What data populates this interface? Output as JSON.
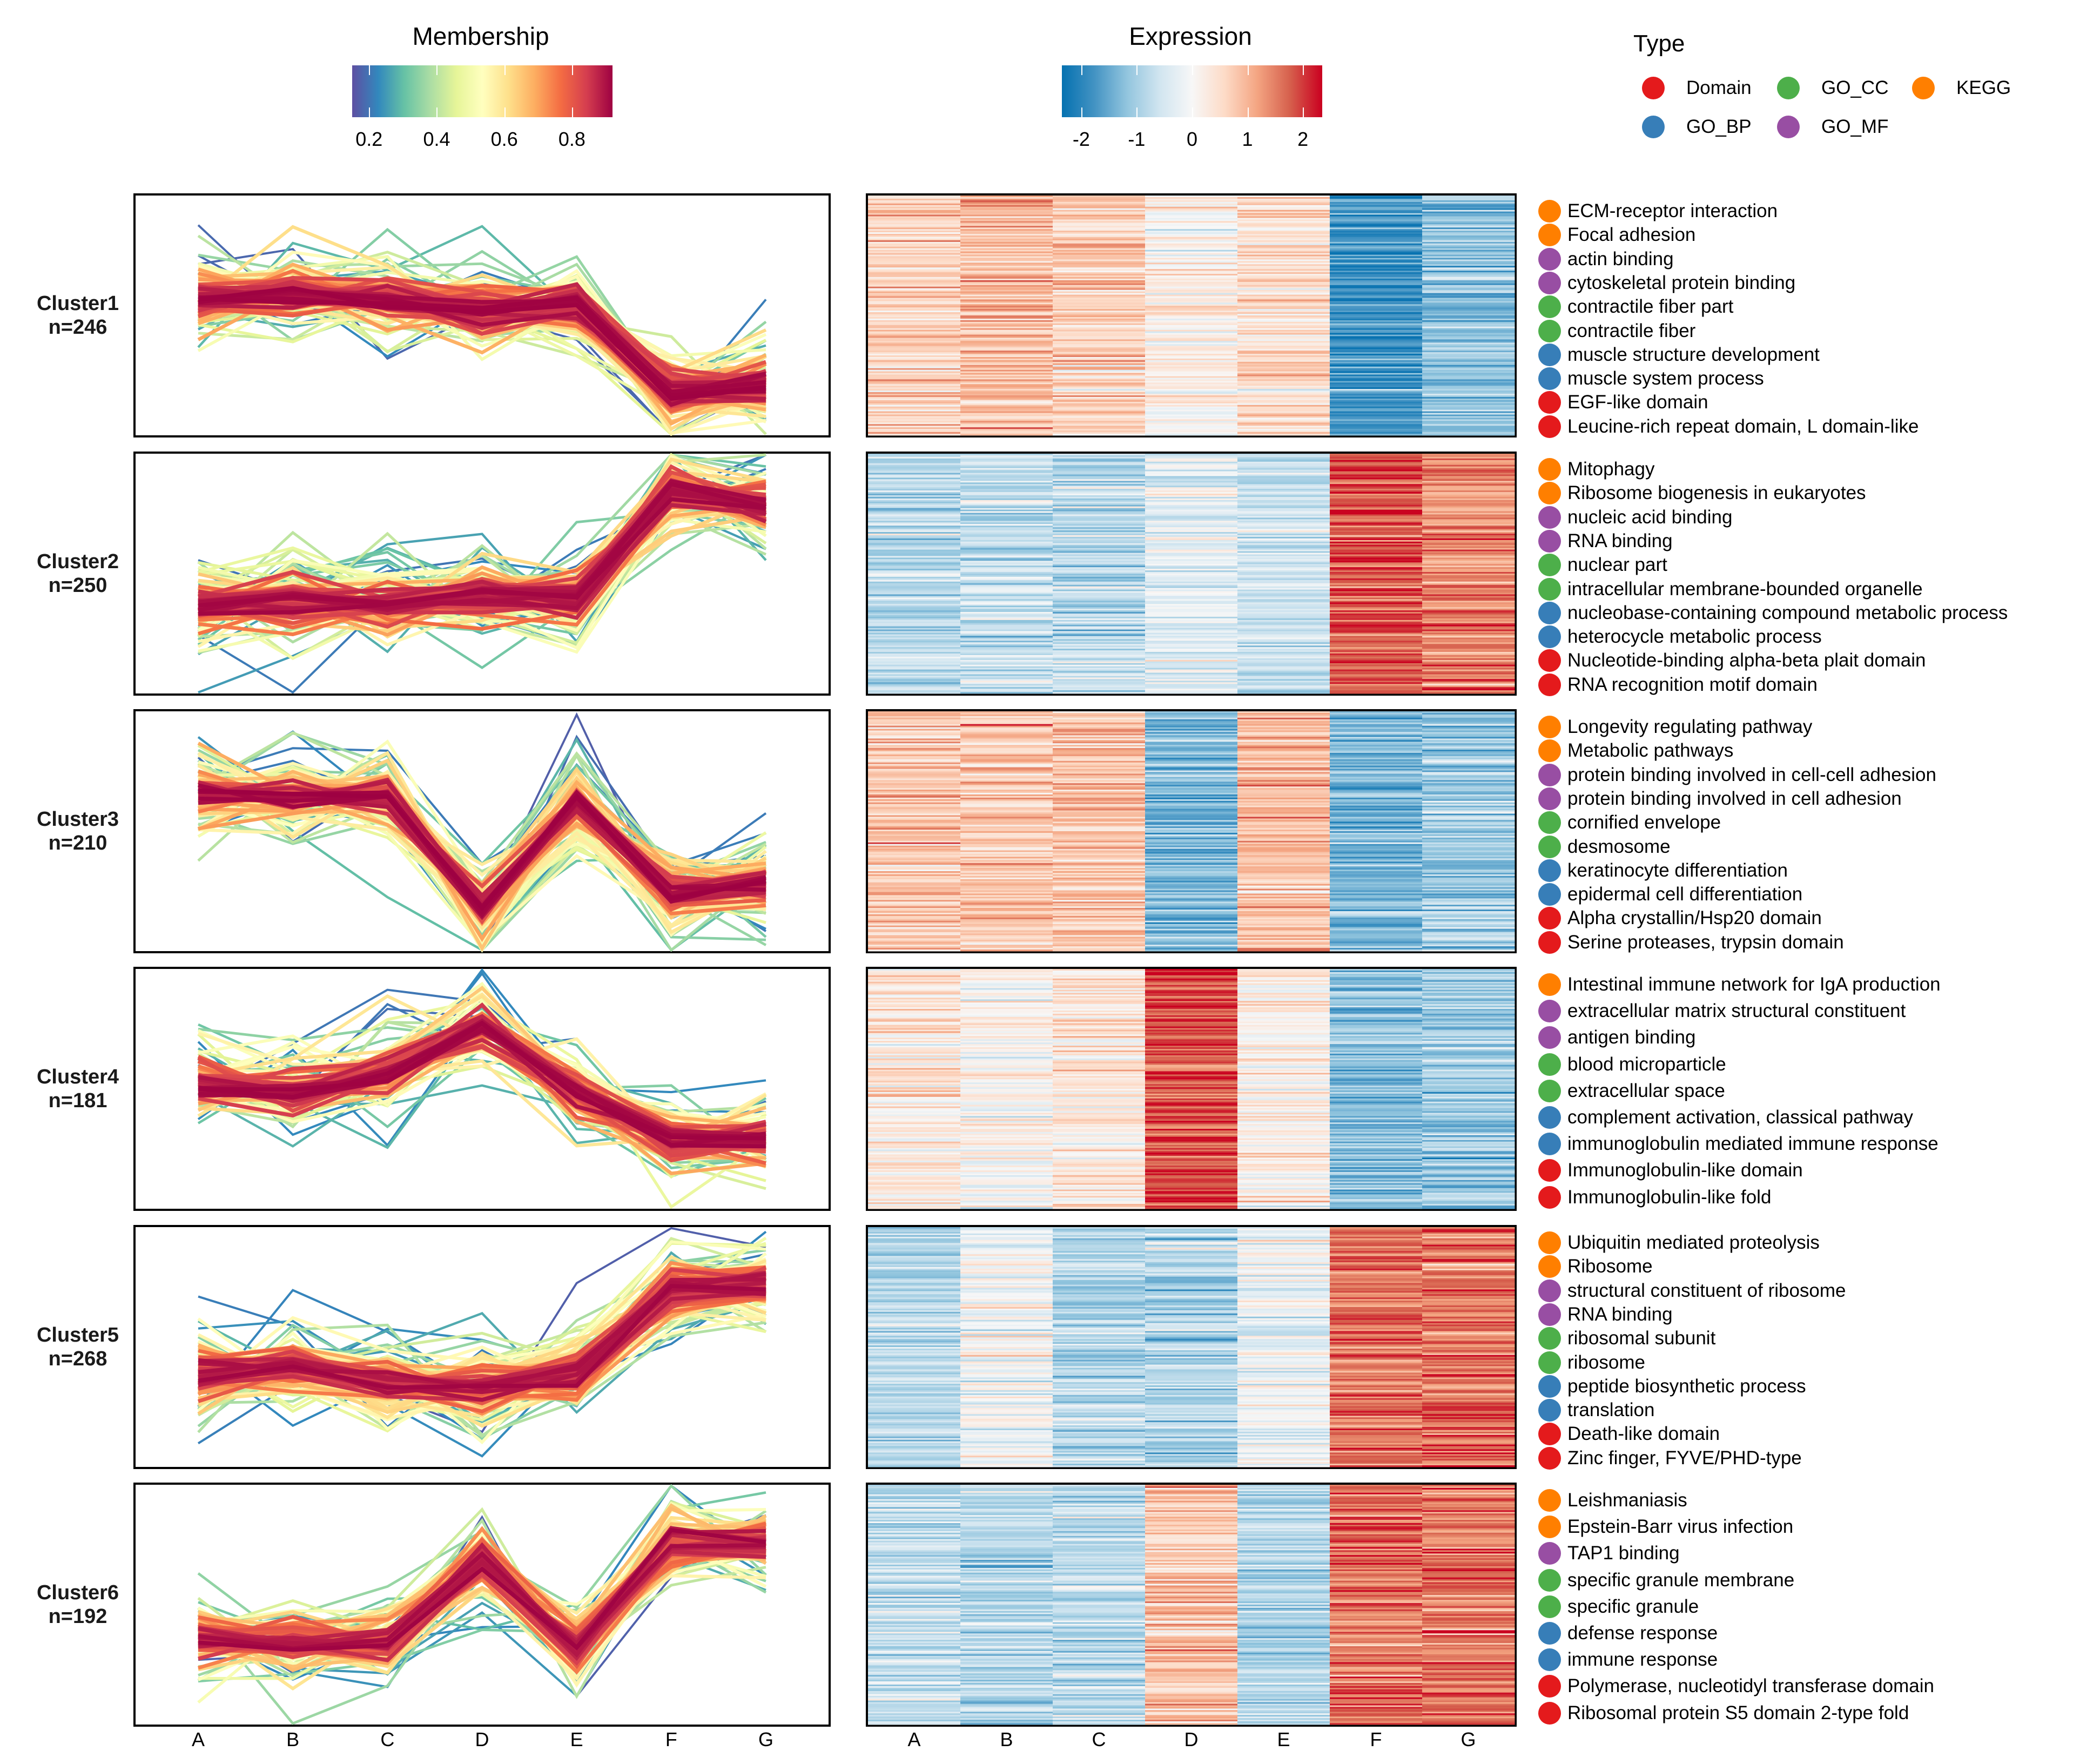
{
  "chart_data": {
    "type": "line",
    "title": "",
    "xlabel": "",
    "ylabel": "",
    "x": [
      "A",
      "B",
      "C",
      "D",
      "E",
      "F",
      "G"
    ],
    "legends": {
      "membership": {
        "title": "Membership",
        "ticks": [
          "0.2",
          "0.4",
          "0.6",
          "0.8"
        ],
        "tick_values": [
          0.2,
          0.4,
          0.6,
          0.8
        ],
        "range": [
          0.15,
          0.92
        ],
        "colors": [
          "#5E4FA2",
          "#3288BD",
          "#66C2A5",
          "#ABDDA4",
          "#E6F598",
          "#FFFFBF",
          "#FEE08B",
          "#FDAE61",
          "#F46D43",
          "#D53E4F",
          "#9E0142"
        ]
      },
      "expression": {
        "title": "Expression",
        "ticks": [
          "-2",
          "-1",
          "0",
          "1",
          "2"
        ],
        "tick_values": [
          -2,
          -1,
          0,
          1,
          2
        ],
        "range": [
          -2.35,
          2.35
        ],
        "colors": [
          "#0571B0",
          "#4393C3",
          "#92C5DE",
          "#D1E5F0",
          "#F7F7F7",
          "#FDDBC7",
          "#F4A582",
          "#D6604D",
          "#CA0020"
        ]
      },
      "type": {
        "title": "Type",
        "items": [
          {
            "label": "Domain",
            "color": "#E41A1C"
          },
          {
            "label": "GO_CC",
            "color": "#4DAF4A"
          },
          {
            "label": "KEGG",
            "color": "#FF7F00"
          },
          {
            "label": "GO_BP",
            "color": "#377EB8"
          },
          {
            "label": "GO_MF",
            "color": "#984EA3"
          }
        ]
      }
    },
    "clusters": [
      {
        "name": "Cluster1",
        "n_label": "n=246",
        "n": 246,
        "centroid": [
          0.35,
          0.45,
          0.3,
          0.1,
          0.2,
          -1.6,
          -1.4
        ],
        "heatmap_means": [
          0.6,
          0.9,
          0.7,
          0.15,
          0.5,
          -1.8,
          -1.2
        ],
        "terms": [
          {
            "label": "ECM-receptor interaction",
            "type": "KEGG"
          },
          {
            "label": "Focal adhesion",
            "type": "KEGG"
          },
          {
            "label": "actin binding",
            "type": "GO_MF"
          },
          {
            "label": "cytoskeletal protein binding",
            "type": "GO_MF"
          },
          {
            "label": "contractile fiber part",
            "type": "GO_CC"
          },
          {
            "label": "contractile fiber",
            "type": "GO_CC"
          },
          {
            "label": "muscle structure development",
            "type": "GO_BP"
          },
          {
            "label": "muscle system process",
            "type": "GO_BP"
          },
          {
            "label": "EGF-like domain",
            "type": "Domain"
          },
          {
            "label": "Leucine-rich repeat domain, L domain-like",
            "type": "Domain"
          }
        ]
      },
      {
        "name": "Cluster2",
        "n_label": "n=250",
        "n": 250,
        "centroid": [
          -0.7,
          -0.55,
          -0.65,
          -0.45,
          -0.55,
          1.7,
          1.4
        ],
        "heatmap_means": [
          -0.8,
          -0.7,
          -0.75,
          -0.3,
          -0.6,
          1.8,
          1.4
        ],
        "terms": [
          {
            "label": "Mitophagy",
            "type": "KEGG"
          },
          {
            "label": "Ribosome biogenesis in eukaryotes",
            "type": "KEGG"
          },
          {
            "label": "nucleic acid binding",
            "type": "GO_MF"
          },
          {
            "label": "RNA binding",
            "type": "GO_MF"
          },
          {
            "label": "nuclear part",
            "type": "GO_CC"
          },
          {
            "label": "intracellular membrane-bounded organelle",
            "type": "GO_CC"
          },
          {
            "label": "nucleobase-containing compound metabolic process",
            "type": "GO_BP"
          },
          {
            "label": "heterocycle metabolic process",
            "type": "GO_BP"
          },
          {
            "label": "Nucleotide-binding alpha-beta plait domain",
            "type": "Domain"
          },
          {
            "label": "RNA recognition motif domain",
            "type": "Domain"
          }
        ]
      },
      {
        "name": "Cluster3",
        "n_label": "n=210",
        "n": 210,
        "centroid": [
          0.75,
          0.7,
          0.75,
          -1.6,
          0.6,
          -1.3,
          -1.1
        ],
        "heatmap_means": [
          0.8,
          0.8,
          0.85,
          -1.3,
          0.9,
          -1.3,
          -1.0
        ],
        "terms": [
          {
            "label": "Longevity regulating pathway",
            "type": "KEGG"
          },
          {
            "label": "Metabolic pathways",
            "type": "KEGG"
          },
          {
            "label": "protein binding involved in cell-cell adhesion",
            "type": "GO_MF"
          },
          {
            "label": "protein binding involved in cell adhesion",
            "type": "GO_MF"
          },
          {
            "label": "cornified envelope",
            "type": "GO_CC"
          },
          {
            "label": "desmosome",
            "type": "GO_CC"
          },
          {
            "label": "keratinocyte differentiation",
            "type": "GO_BP"
          },
          {
            "label": "epidermal cell differentiation",
            "type": "GO_BP"
          },
          {
            "label": "Alpha crystallin/Hsp20 domain",
            "type": "Domain"
          },
          {
            "label": "Serine proteases, trypsin domain",
            "type": "Domain"
          }
        ]
      },
      {
        "name": "Cluster4",
        "n_label": "n=181",
        "n": 181,
        "centroid": [
          0.1,
          -0.1,
          0.3,
          1.3,
          -0.1,
          -1.1,
          -1.0
        ],
        "heatmap_means": [
          0.3,
          0.05,
          0.35,
          1.9,
          0.15,
          -1.2,
          -1.1
        ],
        "terms": [
          {
            "label": "Intestinal immune network for IgA production",
            "type": "KEGG"
          },
          {
            "label": "extracellular matrix structural constituent",
            "type": "GO_MF"
          },
          {
            "label": "antigen binding",
            "type": "GO_MF"
          },
          {
            "label": "blood microparticle",
            "type": "GO_CC"
          },
          {
            "label": "extracellular space",
            "type": "GO_CC"
          },
          {
            "label": "complement activation, classical pathway",
            "type": "GO_BP"
          },
          {
            "label": "immunoglobulin mediated immune response",
            "type": "GO_BP"
          },
          {
            "label": "Immunoglobulin-like domain",
            "type": "Domain"
          },
          {
            "label": "Immunoglobulin-like fold",
            "type": "Domain"
          }
        ]
      },
      {
        "name": "Cluster5",
        "n_label": "n=268",
        "n": 268,
        "centroid": [
          -0.6,
          -0.4,
          -0.75,
          -0.85,
          -0.5,
          1.2,
          1.25
        ],
        "heatmap_means": [
          -0.8,
          -0.1,
          -0.85,
          -0.95,
          -0.1,
          1.6,
          1.6
        ],
        "terms": [
          {
            "label": "Ubiquitin mediated proteolysis",
            "type": "KEGG"
          },
          {
            "label": "Ribosome",
            "type": "KEGG"
          },
          {
            "label": "structural constituent of ribosome",
            "type": "GO_MF"
          },
          {
            "label": "RNA binding",
            "type": "GO_MF"
          },
          {
            "label": "ribosomal subunit",
            "type": "GO_CC"
          },
          {
            "label": "ribosome",
            "type": "GO_CC"
          },
          {
            "label": "peptide biosynthetic process",
            "type": "GO_BP"
          },
          {
            "label": "translation",
            "type": "GO_BP"
          },
          {
            "label": "Death-like domain",
            "type": "Domain"
          },
          {
            "label": "Zinc finger, FYVE/PHD-type",
            "type": "Domain"
          }
        ]
      },
      {
        "name": "Cluster6",
        "n_label": "n=192",
        "n": 192,
        "centroid": [
          -0.7,
          -0.8,
          -0.7,
          0.9,
          -0.9,
          1.3,
          1.3
        ],
        "heatmap_means": [
          -0.7,
          -0.8,
          -0.7,
          0.8,
          -0.9,
          1.6,
          1.5
        ],
        "terms": [
          {
            "label": "Leishmaniasis",
            "type": "KEGG"
          },
          {
            "label": "Epstein-Barr virus infection",
            "type": "KEGG"
          },
          {
            "label": "TAP1 binding",
            "type": "GO_MF"
          },
          {
            "label": "specific granule membrane",
            "type": "GO_CC"
          },
          {
            "label": "specific granule",
            "type": "GO_CC"
          },
          {
            "label": "defense response",
            "type": "GO_BP"
          },
          {
            "label": "immune response",
            "type": "GO_BP"
          },
          {
            "label": "Polymerase, nucleotidyl transferase domain",
            "type": "Domain"
          },
          {
            "label": "Ribosomal protein S5 domain 2-type fold",
            "type": "Domain"
          }
        ]
      }
    ]
  }
}
